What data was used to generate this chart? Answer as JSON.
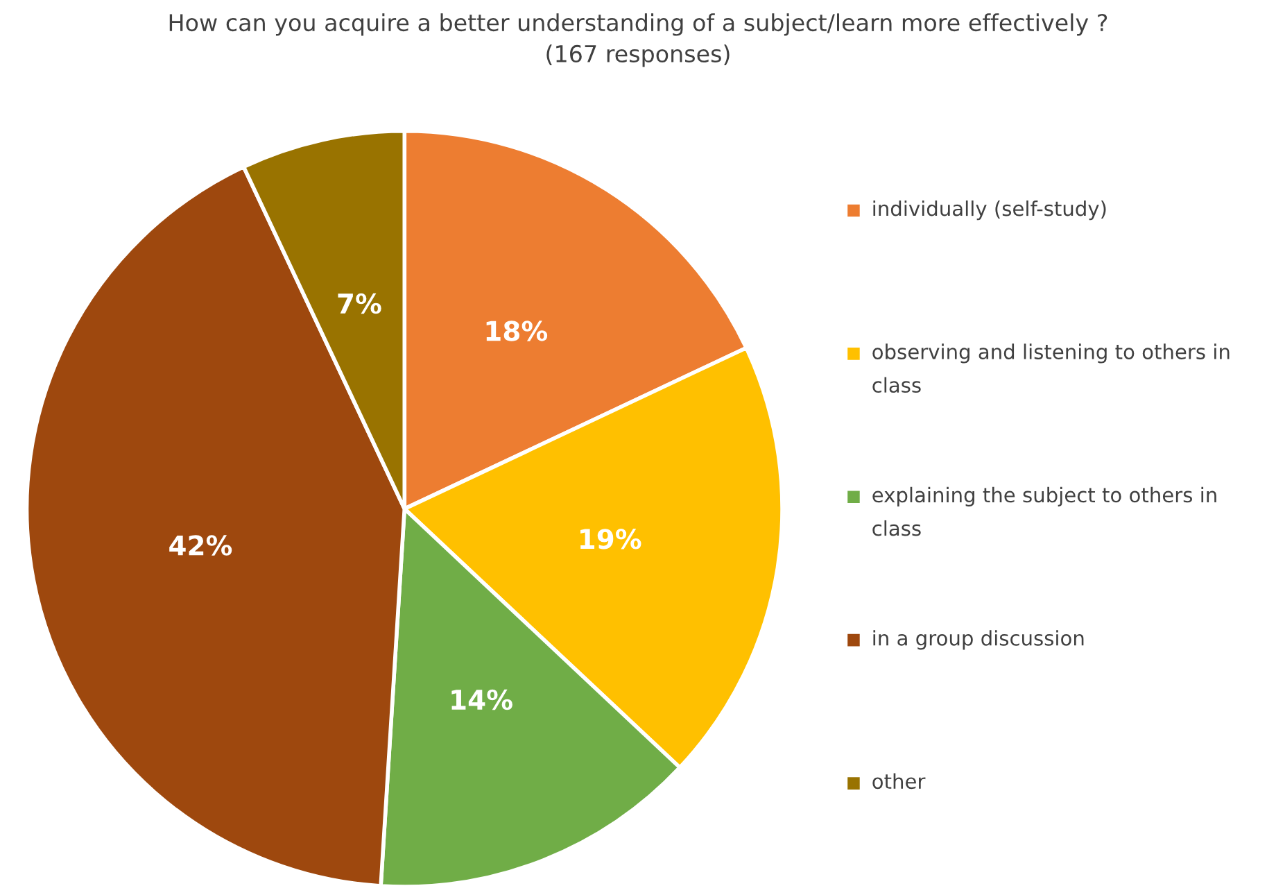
{
  "chart_data": {
    "type": "pie",
    "title": "How can you acquire a better understanding of a subject/learn more effectively ?\n(167 responses)",
    "categories": [
      "individually (self-study)",
      "observing and listening to others in class",
      "explaining the subject to others in class",
      "in a group discussion",
      "other"
    ],
    "values": [
      18,
      19,
      14,
      42,
      7
    ],
    "colors": [
      "#ed7d31",
      "#ffc000",
      "#70ad47",
      "#9e480e",
      "#997300"
    ],
    "value_labels": [
      "18%",
      "19%",
      "14%",
      "42%",
      "7%"
    ],
    "legend": "right"
  }
}
